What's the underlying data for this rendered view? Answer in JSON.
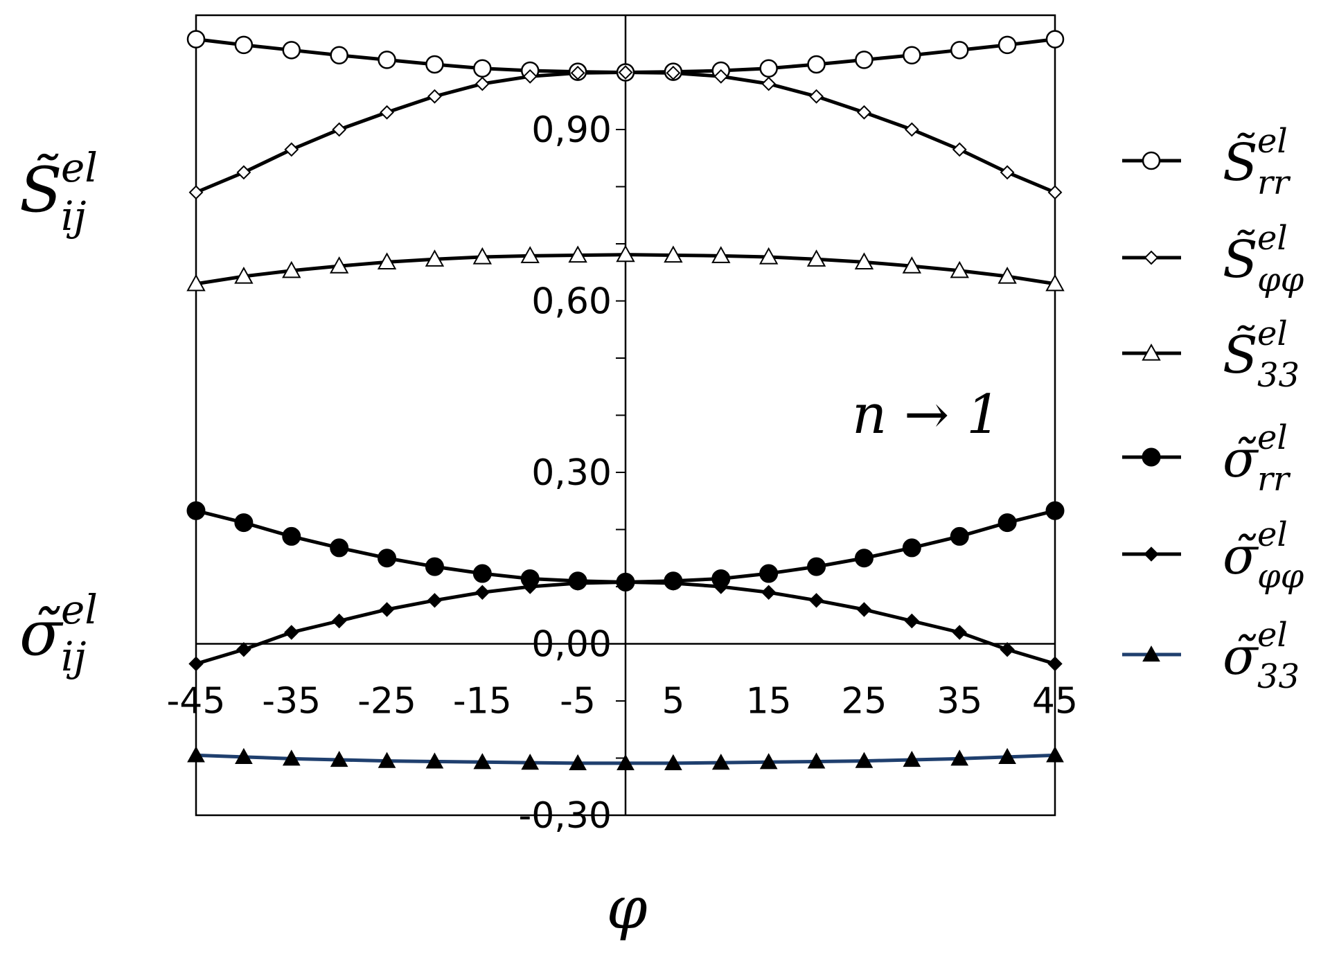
{
  "chart_data": {
    "type": "line",
    "x": [
      -45,
      -40,
      -35,
      -30,
      -25,
      -20,
      -15,
      -10,
      -5,
      0,
      5,
      10,
      15,
      20,
      25,
      30,
      35,
      40,
      45
    ],
    "x_tick_labels": [
      "-45",
      "-35",
      "-25",
      "-15",
      "-5",
      "5",
      "15",
      "25",
      "35",
      "45"
    ],
    "x_tick_values": [
      -45,
      -35,
      -25,
      -15,
      -5,
      5,
      15,
      25,
      35,
      45
    ],
    "y_tick_labels": [
      "0,90",
      "0,60",
      "0,30",
      "0,00",
      "-0,30"
    ],
    "y_tick_values": [
      0.9,
      0.6,
      0.3,
      0.0,
      -0.3
    ],
    "xlim": [
      -45,
      45
    ],
    "ylim": [
      -0.3,
      1.1
    ],
    "xlabel": "φ",
    "ylabel_top": {
      "base": "S̃",
      "sup": "el",
      "sub": "ij"
    },
    "ylabel_bottom": {
      "base": "σ̃",
      "sup": "el",
      "sub": "ij"
    },
    "annotation": "n → 1",
    "legend_position": "right",
    "series": [
      {
        "name": "S̃rr el",
        "label": {
          "base": "S̃",
          "sup": "el",
          "sub": "rr"
        },
        "marker": "circle-open",
        "color": "#000000",
        "values": [
          1.058,
          1.048,
          1.039,
          1.03,
          1.022,
          1.014,
          1.007,
          1.003,
          1.001,
          1.0,
          1.001,
          1.003,
          1.007,
          1.014,
          1.022,
          1.03,
          1.039,
          1.048,
          1.058
        ]
      },
      {
        "name": "S̃φφ el",
        "label": {
          "base": "S̃",
          "sup": "el",
          "sub": "φφ"
        },
        "marker": "diamond-open",
        "color": "#000000",
        "values": [
          0.79,
          0.825,
          0.865,
          0.9,
          0.93,
          0.958,
          0.98,
          0.993,
          0.999,
          1.0,
          0.999,
          0.993,
          0.98,
          0.958,
          0.93,
          0.9,
          0.865,
          0.825,
          0.79
        ]
      },
      {
        "name": "S̃33 el",
        "label": {
          "base": "S̃",
          "sup": "el",
          "sub": "33"
        },
        "marker": "triangle-open",
        "color": "#000000",
        "values": [
          0.63,
          0.643,
          0.653,
          0.661,
          0.668,
          0.673,
          0.677,
          0.679,
          0.68,
          0.681,
          0.68,
          0.679,
          0.677,
          0.673,
          0.668,
          0.661,
          0.653,
          0.643,
          0.63
        ]
      },
      {
        "name": "σ̃rr el",
        "label": {
          "base": "σ̃",
          "sup": "el",
          "sub": "rr"
        },
        "marker": "circle-filled",
        "color": "#000000",
        "values": [
          0.233,
          0.212,
          0.188,
          0.168,
          0.15,
          0.135,
          0.123,
          0.114,
          0.11,
          0.108,
          0.11,
          0.114,
          0.123,
          0.135,
          0.15,
          0.168,
          0.188,
          0.212,
          0.233
        ]
      },
      {
        "name": "σ̃φφ el",
        "label": {
          "base": "σ̃",
          "sup": "el",
          "sub": "φφ"
        },
        "marker": "diamond-filled",
        "color": "#000000",
        "values": [
          -0.035,
          -0.01,
          0.02,
          0.04,
          0.06,
          0.076,
          0.09,
          0.1,
          0.106,
          0.108,
          0.106,
          0.1,
          0.09,
          0.076,
          0.06,
          0.04,
          0.02,
          -0.01,
          -0.035
        ]
      },
      {
        "name": "σ̃33 el",
        "label": {
          "base": "σ̃",
          "sup": "el",
          "sub": "33"
        },
        "marker": "triangle-filled",
        "color": "#1f3f6e",
        "values": [
          -0.195,
          -0.198,
          -0.201,
          -0.203,
          -0.205,
          -0.206,
          -0.207,
          -0.208,
          -0.209,
          -0.209,
          -0.209,
          -0.208,
          -0.207,
          -0.206,
          -0.205,
          -0.203,
          -0.201,
          -0.198,
          -0.195
        ]
      }
    ]
  }
}
